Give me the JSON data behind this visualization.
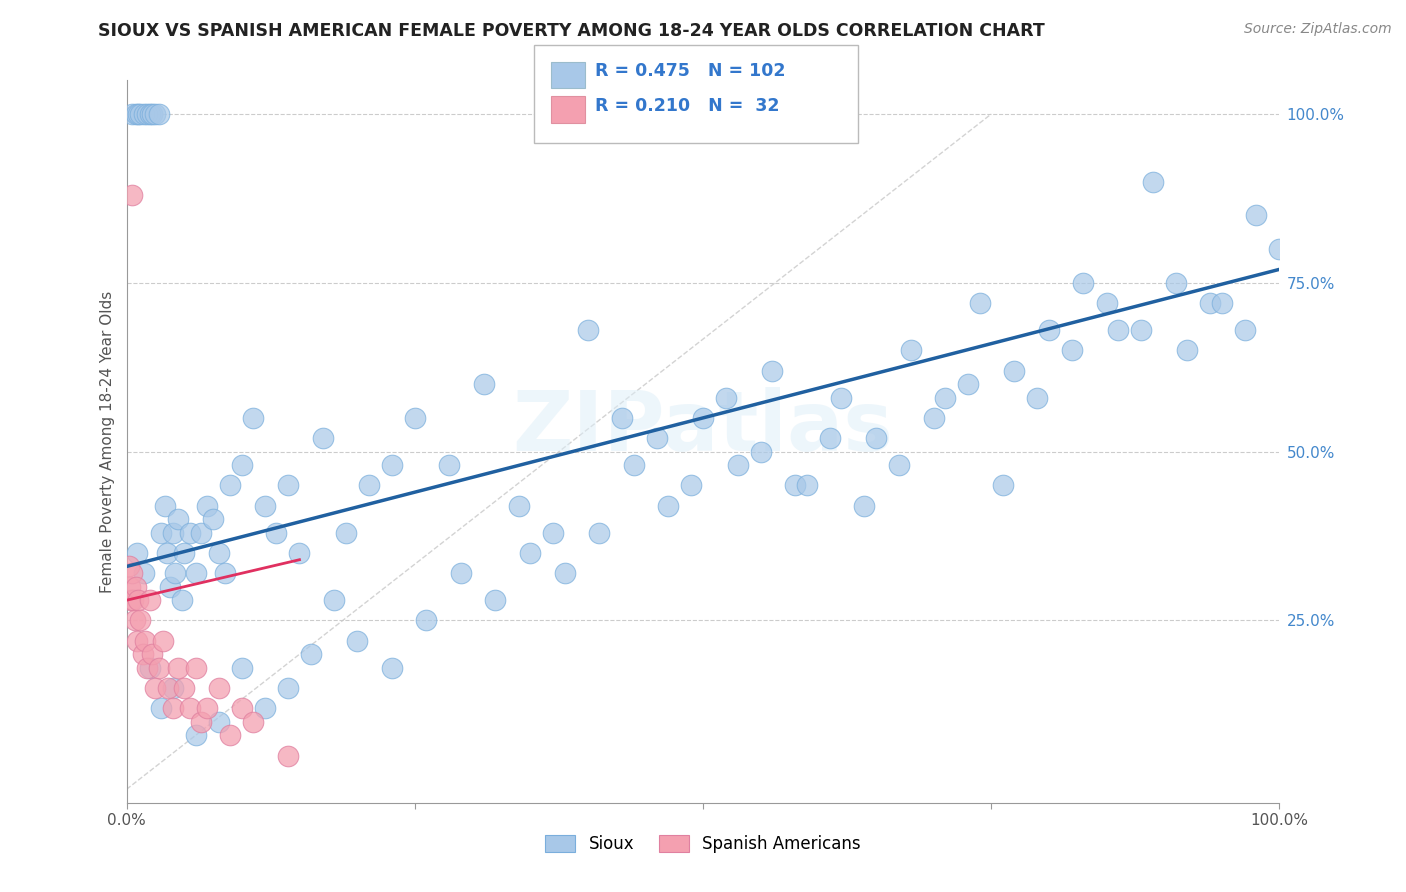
{
  "title": "SIOUX VS SPANISH AMERICAN FEMALE POVERTY AMONG 18-24 YEAR OLDS CORRELATION CHART",
  "source": "Source: ZipAtlas.com",
  "ylabel": "Female Poverty Among 18-24 Year Olds",
  "xlim": [
    0.0,
    1.0
  ],
  "ylim": [
    -0.02,
    1.05
  ],
  "xticks": [
    0.0,
    0.25,
    0.5,
    0.75,
    1.0
  ],
  "xticklabels": [
    "0.0%",
    "",
    "",
    "",
    "100.0%"
  ],
  "yticks_right": [
    0.25,
    0.5,
    0.75,
    1.0
  ],
  "yticklabels_right": [
    "25.0%",
    "50.0%",
    "75.0%",
    "100.0%"
  ],
  "sioux_color": "#a8c8e8",
  "spanish_color": "#f4a0b0",
  "sioux_line_color": "#2060a0",
  "spanish_line_color": "#e03060",
  "watermark": "ZIPatlas",
  "legend_R_sioux": "0.475",
  "legend_N_sioux": "102",
  "legend_R_spanish": "0.210",
  "legend_N_spanish": "32",
  "sioux_scatter_x": [
    0.005,
    0.008,
    0.01,
    0.012,
    0.015,
    0.018,
    0.02,
    0.022,
    0.025,
    0.028,
    0.03,
    0.033,
    0.035,
    0.038,
    0.04,
    0.042,
    0.045,
    0.048,
    0.05,
    0.055,
    0.06,
    0.065,
    0.07,
    0.075,
    0.08,
    0.085,
    0.09,
    0.1,
    0.11,
    0.12,
    0.13,
    0.14,
    0.15,
    0.17,
    0.19,
    0.21,
    0.23,
    0.25,
    0.28,
    0.31,
    0.34,
    0.37,
    0.4,
    0.43,
    0.46,
    0.49,
    0.52,
    0.55,
    0.58,
    0.61,
    0.64,
    0.67,
    0.7,
    0.73,
    0.76,
    0.79,
    0.82,
    0.85,
    0.88,
    0.91,
    0.94,
    0.97,
    1.0,
    0.98,
    0.95,
    0.92,
    0.89,
    0.86,
    0.83,
    0.8,
    0.77,
    0.74,
    0.71,
    0.68,
    0.65,
    0.62,
    0.59,
    0.56,
    0.53,
    0.5,
    0.47,
    0.44,
    0.41,
    0.38,
    0.35,
    0.32,
    0.29,
    0.26,
    0.23,
    0.2,
    0.18,
    0.16,
    0.14,
    0.12,
    0.1,
    0.08,
    0.06,
    0.04,
    0.03,
    0.02,
    0.015,
    0.009
  ],
  "sioux_scatter_y": [
    1.0,
    1.0,
    1.0,
    1.0,
    1.0,
    1.0,
    1.0,
    1.0,
    1.0,
    1.0,
    0.38,
    0.42,
    0.35,
    0.3,
    0.38,
    0.32,
    0.4,
    0.28,
    0.35,
    0.38,
    0.32,
    0.38,
    0.42,
    0.4,
    0.35,
    0.32,
    0.45,
    0.48,
    0.55,
    0.42,
    0.38,
    0.45,
    0.35,
    0.52,
    0.38,
    0.45,
    0.48,
    0.55,
    0.48,
    0.6,
    0.42,
    0.38,
    0.68,
    0.55,
    0.52,
    0.45,
    0.58,
    0.5,
    0.45,
    0.52,
    0.42,
    0.48,
    0.55,
    0.6,
    0.45,
    0.58,
    0.65,
    0.72,
    0.68,
    0.75,
    0.72,
    0.68,
    0.8,
    0.85,
    0.72,
    0.65,
    0.9,
    0.68,
    0.75,
    0.68,
    0.62,
    0.72,
    0.58,
    0.65,
    0.52,
    0.58,
    0.45,
    0.62,
    0.48,
    0.55,
    0.42,
    0.48,
    0.38,
    0.32,
    0.35,
    0.28,
    0.32,
    0.25,
    0.18,
    0.22,
    0.28,
    0.2,
    0.15,
    0.12,
    0.18,
    0.1,
    0.08,
    0.15,
    0.12,
    0.18,
    0.32,
    0.35
  ],
  "spanish_scatter_x": [
    0.002,
    0.003,
    0.004,
    0.005,
    0.006,
    0.007,
    0.008,
    0.009,
    0.01,
    0.012,
    0.014,
    0.016,
    0.018,
    0.02,
    0.022,
    0.025,
    0.028,
    0.032,
    0.036,
    0.04,
    0.045,
    0.05,
    0.055,
    0.06,
    0.065,
    0.07,
    0.08,
    0.09,
    0.1,
    0.11,
    0.005,
    0.14
  ],
  "spanish_scatter_y": [
    0.33,
    0.3,
    0.28,
    0.32,
    0.28,
    0.25,
    0.3,
    0.22,
    0.28,
    0.25,
    0.2,
    0.22,
    0.18,
    0.28,
    0.2,
    0.15,
    0.18,
    0.22,
    0.15,
    0.12,
    0.18,
    0.15,
    0.12,
    0.18,
    0.1,
    0.12,
    0.15,
    0.08,
    0.12,
    0.1,
    0.88,
    0.05
  ],
  "sioux_line_x0": 0.0,
  "sioux_line_y0": 0.33,
  "sioux_line_x1": 1.0,
  "sioux_line_y1": 0.77,
  "spanish_line_x0": 0.0,
  "spanish_line_y0": 0.28,
  "spanish_line_x1": 0.15,
  "spanish_line_y1": 0.34
}
